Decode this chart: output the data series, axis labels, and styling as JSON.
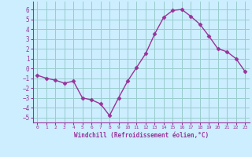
{
  "x": [
    0,
    1,
    2,
    3,
    4,
    5,
    6,
    7,
    8,
    9,
    10,
    11,
    12,
    13,
    14,
    15,
    16,
    17,
    18,
    19,
    20,
    21,
    22,
    23
  ],
  "y": [
    -0.7,
    -1.0,
    -1.2,
    -1.5,
    -1.3,
    -3.0,
    -3.2,
    -3.6,
    -4.8,
    -3.0,
    -1.3,
    0.1,
    1.5,
    3.5,
    5.2,
    5.9,
    6.0,
    5.3,
    4.5,
    3.3,
    2.0,
    1.7,
    1.0,
    -0.3
  ],
  "line_color": "#993399",
  "marker": "D",
  "marker_size": 2.5,
  "bg_color": "#cceeff",
  "grid_color": "#99cccc",
  "xlabel": "Windchill (Refroidissement éolien,°C)",
  "tick_color": "#993399",
  "ylim": [
    -5.5,
    6.8
  ],
  "xlim": [
    -0.5,
    23.5
  ],
  "yticks": [
    -5,
    -4,
    -3,
    -2,
    -1,
    0,
    1,
    2,
    3,
    4,
    5,
    6
  ],
  "xticks": [
    0,
    1,
    2,
    3,
    4,
    5,
    6,
    7,
    8,
    9,
    10,
    11,
    12,
    13,
    14,
    15,
    16,
    17,
    18,
    19,
    20,
    21,
    22,
    23
  ],
  "line_width": 1.0
}
